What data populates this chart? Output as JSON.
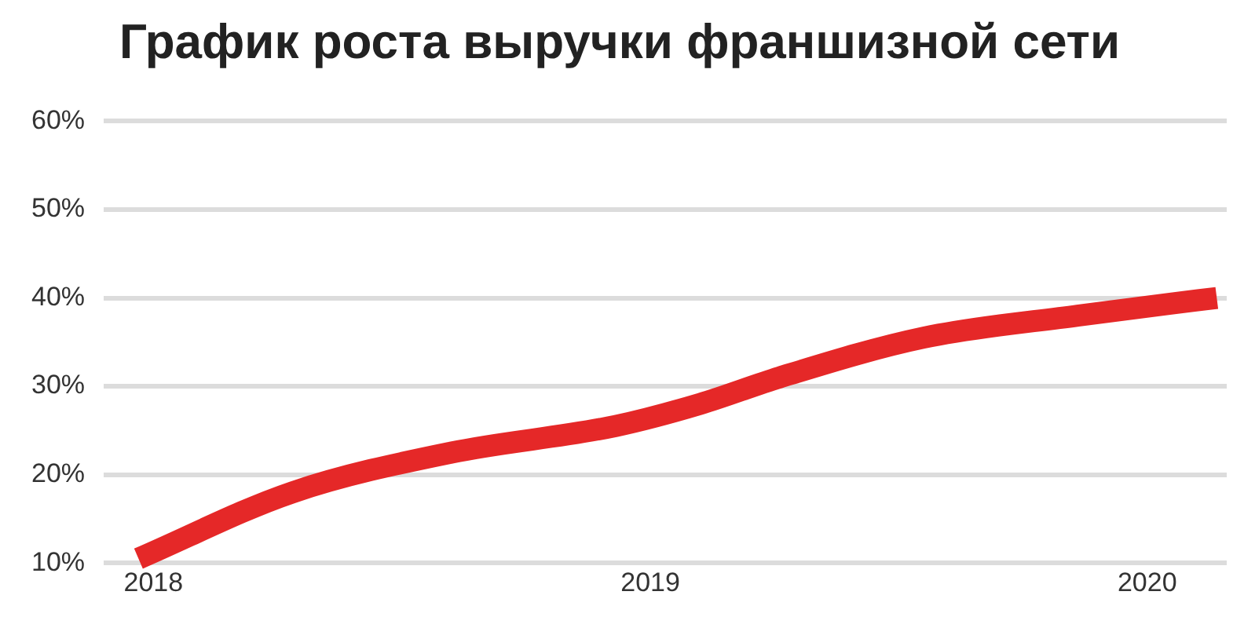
{
  "chart_data": {
    "type": "line",
    "title": "График роста выручки франшизной сети",
    "x": [
      2017.97,
      2018.28,
      2018.6,
      2018.93,
      2019.1,
      2019.26,
      2019.55,
      2019.86,
      2020.14
    ],
    "series": [
      {
        "color": "#e52828",
        "values": [
          10.5,
          18,
          22.5,
          25.5,
          28,
          31,
          35.5,
          38,
          40
        ]
      }
    ],
    "xlim": [
      2017.9,
      2020.16
    ],
    "xticks": [
      2018,
      2019,
      2020
    ],
    "ylim": [
      10,
      60
    ],
    "yticks": [
      {
        "value": 10,
        "label": "10%"
      },
      {
        "value": 20,
        "label": "20%"
      },
      {
        "value": 30,
        "label": "30%"
      },
      {
        "value": 40,
        "label": "40%"
      },
      {
        "value": 50,
        "label": "50%"
      },
      {
        "value": 60,
        "label": "60%"
      }
    ],
    "grid": "y",
    "legend": false,
    "marker": "none",
    "line_style": "solid"
  }
}
